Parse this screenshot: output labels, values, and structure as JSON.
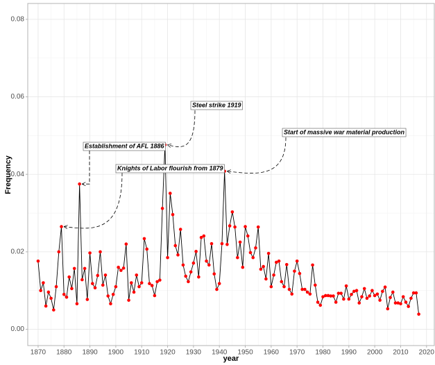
{
  "chart_data": {
    "type": "line",
    "x_label": "year",
    "y_label": "Frequency",
    "x": [
      1870,
      1871,
      1872,
      1873,
      1874,
      1875,
      1876,
      1877,
      1878,
      1879,
      1880,
      1881,
      1882,
      1883,
      1884,
      1885,
      1886,
      1887,
      1888,
      1889,
      1890,
      1891,
      1892,
      1893,
      1894,
      1895,
      1896,
      1897,
      1898,
      1899,
      1900,
      1901,
      1902,
      1903,
      1904,
      1905,
      1906,
      1907,
      1908,
      1909,
      1910,
      1911,
      1912,
      1913,
      1914,
      1915,
      1916,
      1917,
      1918,
      1919,
      1920,
      1921,
      1922,
      1923,
      1924,
      1925,
      1926,
      1927,
      1928,
      1929,
      1930,
      1931,
      1932,
      1933,
      1934,
      1935,
      1936,
      1937,
      1938,
      1939,
      1940,
      1941,
      1942,
      1943,
      1944,
      1945,
      1946,
      1947,
      1948,
      1949,
      1950,
      1951,
      1952,
      1953,
      1954,
      1955,
      1956,
      1957,
      1958,
      1959,
      1960,
      1961,
      1962,
      1963,
      1964,
      1965,
      1966,
      1967,
      1968,
      1969,
      1970,
      1971,
      1972,
      1973,
      1974,
      1975,
      1976,
      1977,
      1978,
      1979,
      1980,
      1981,
      1982,
      1983,
      1984,
      1985,
      1986,
      1987,
      1988,
      1989,
      1990,
      1991,
      1992,
      1993,
      1994,
      1995,
      1996,
      1997,
      1998,
      1999,
      2000,
      2001,
      2002,
      2003,
      2004,
      2005,
      2006,
      2007,
      2008,
      2009,
      2010,
      2011,
      2012,
      2013,
      2014,
      2015,
      2016,
      2017
    ],
    "series": [
      {
        "color": "#000000",
        "marker_color": "#ff0000",
        "values": [
          0.0176,
          0.01,
          0.012,
          0.006,
          0.0096,
          0.008,
          0.005,
          0.011,
          0.02,
          0.0265,
          0.009,
          0.0083,
          0.0135,
          0.0105,
          0.0157,
          0.0066,
          0.0375,
          0.0128,
          0.0157,
          0.0077,
          0.0197,
          0.0118,
          0.0107,
          0.0139,
          0.02,
          0.0114,
          0.014,
          0.0086,
          0.0066,
          0.009,
          0.011,
          0.016,
          0.0152,
          0.0158,
          0.022,
          0.0075,
          0.012,
          0.0096,
          0.014,
          0.011,
          0.012,
          0.0234,
          0.0207,
          0.0118,
          0.0113,
          0.0087,
          0.0123,
          0.0127,
          0.0312,
          0.0476,
          0.0185,
          0.0351,
          0.0296,
          0.0216,
          0.0192,
          0.0258,
          0.0166,
          0.0137,
          0.0123,
          0.0148,
          0.0171,
          0.0201,
          0.0135,
          0.0237,
          0.0241,
          0.0176,
          0.0166,
          0.0221,
          0.0143,
          0.0103,
          0.0118,
          0.0221,
          0.0408,
          0.0219,
          0.0267,
          0.0303,
          0.0264,
          0.0185,
          0.0225,
          0.016,
          0.0265,
          0.0241,
          0.0198,
          0.0185,
          0.021,
          0.0264,
          0.0155,
          0.0162,
          0.013,
          0.0196,
          0.011,
          0.014,
          0.0173,
          0.0176,
          0.0123,
          0.011,
          0.0167,
          0.0103,
          0.0091,
          0.015,
          0.0176,
          0.0144,
          0.0103,
          0.0103,
          0.0096,
          0.0091,
          0.0166,
          0.0114,
          0.007,
          0.0062,
          0.0084,
          0.0087,
          0.0087,
          0.0086,
          0.0086,
          0.007,
          0.0093,
          0.0093,
          0.0078,
          0.0112,
          0.0078,
          0.009,
          0.0098,
          0.01,
          0.0068,
          0.0084,
          0.0105,
          0.008,
          0.0086,
          0.01,
          0.0087,
          0.0091,
          0.0075,
          0.0098,
          0.0109,
          0.0053,
          0.0082,
          0.0096,
          0.0068,
          0.0068,
          0.0066,
          0.0084,
          0.007,
          0.0059,
          0.008,
          0.0094,
          0.0094,
          0.0039
        ]
      }
    ],
    "xlim": [
      1866,
      2023
    ],
    "ylim": [
      -0.0042,
      0.0841
    ],
    "xticks": [
      1870,
      1880,
      1890,
      1900,
      1910,
      1920,
      1930,
      1940,
      1950,
      1960,
      1970,
      1980,
      1990,
      2000,
      2010,
      2020
    ],
    "yticks": [
      {
        "value": 0,
        "label": "0.00"
      },
      {
        "value": 0.02,
        "label": "0.02"
      },
      {
        "value": 0.04,
        "label": "0.04"
      },
      {
        "value": 0.06,
        "label": "0.06"
      },
      {
        "value": 0.08,
        "label": "0.08"
      }
    ],
    "grid": true,
    "annotations": [
      {
        "text": "Establishment of AFL 1886",
        "x": 1886
      },
      {
        "text": "Knights of Labor flourish from 1879",
        "x": 1879
      },
      {
        "text": "Steel strike 1919",
        "x": 1919
      },
      {
        "text": "Start of massive war material production",
        "x": 1942
      }
    ]
  }
}
